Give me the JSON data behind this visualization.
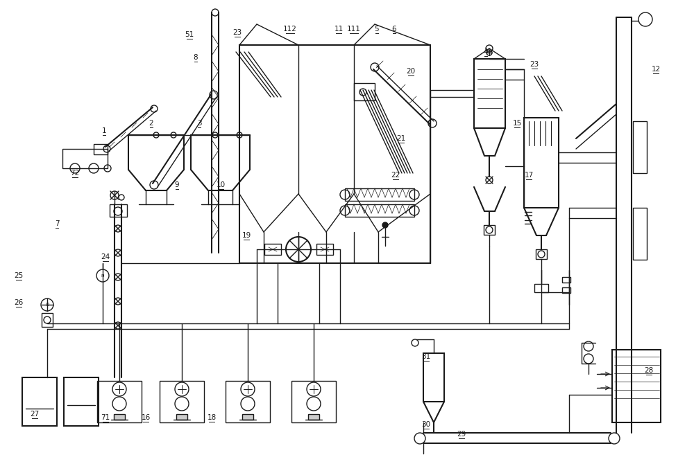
{
  "bg_color": "#ffffff",
  "line_color": "#1a1a1a",
  "lw": 1.0,
  "lw2": 1.5
}
